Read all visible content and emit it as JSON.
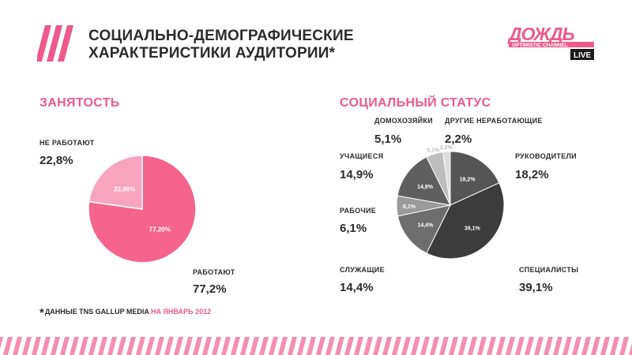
{
  "header": {
    "title_line1": "СОЦИАЛЬНО-ДЕМОГРАФИЧЕСКИЕ",
    "title_line2": "ХАРАКТЕРИСТИКИ АУДИТОРИИ*",
    "logo_main": "ДОЖДЬ",
    "logo_sub": "OPTIMISTIC CHANNEL",
    "logo_badge": "LIVE"
  },
  "employment": {
    "heading": "ЗАНЯТОСТЬ",
    "not_working_label": "НЕ РАБОТАЮТ",
    "not_working_value": "22,8%",
    "working_label": "РАБОТАЮТ",
    "working_value": "77,2%"
  },
  "social": {
    "heading": "СОЦИАЛЬНЫЙ СТАТУС",
    "housewives_label": "ДОМОХОЗЯЙКИ",
    "housewives_value": "5,1%",
    "other_label": "ДРУГИЕ НЕРАБОТАЮЩИЕ",
    "other_value": "2,2%",
    "students_label": "УЧАЩИЕСЯ",
    "students_value": "14,9%",
    "managers_label": "РУКОВОДИТЕЛИ",
    "managers_value": "18,2%",
    "workers_label": "РАБОЧИЕ",
    "workers_value": "6,1%",
    "employees_label": "СЛУЖАЩИЕ",
    "employees_value": "14,4%",
    "specialists_label": "СПЕЦИАЛИСТЫ",
    "specialists_value": "39,1%"
  },
  "footnote": {
    "star": "*",
    "text": "ДАННЫЕ TNS GALLUP MEDIA ",
    "highlight": "НА ЯНВАРЬ 2012"
  },
  "colors": {
    "accent": "#ee5a8a",
    "text": "#2b2b2b"
  },
  "chart_data": [
    {
      "type": "pie",
      "title": "ЗАНЯТОСТЬ",
      "slices": [
        {
          "label": "РАБОТАЮТ",
          "value": 77.2,
          "data_label": "77,20%",
          "color": "#f4648d"
        },
        {
          "label": "НЕ РАБОТАЮТ",
          "value": 22.8,
          "data_label": "22,80%",
          "color": "#f7a4bf"
        }
      ]
    },
    {
      "type": "pie",
      "title": "СОЦИАЛЬНЫЙ СТАТУС",
      "slices": [
        {
          "label": "РУКОВОДИТЕЛИ",
          "value": 18.2,
          "data_label": "18,2%",
          "color": "#555555"
        },
        {
          "label": "СПЕЦИАЛИСТЫ",
          "value": 39.1,
          "data_label": "39,1%",
          "color": "#3c3c3c"
        },
        {
          "label": "СЛУЖАЩИЕ",
          "value": 14.4,
          "data_label": "14,4%",
          "color": "#6e6e6e"
        },
        {
          "label": "РАБОЧИЕ",
          "value": 6.1,
          "data_label": "6,1%",
          "color": "#9a9a9a"
        },
        {
          "label": "УЧАЩИЕСЯ",
          "value": 14.9,
          "data_label": "14,9%",
          "color": "#5f5f5f"
        },
        {
          "label": "ДОМОХОЗЯЙКИ",
          "value": 5.1,
          "data_label": "5,1%",
          "color": "#bdbdbd"
        },
        {
          "label": "ДРУГИЕ НЕРАБОТАЮЩИЕ",
          "value": 2.2,
          "data_label": "2,2%",
          "color": "#dcdcdc"
        }
      ]
    }
  ]
}
